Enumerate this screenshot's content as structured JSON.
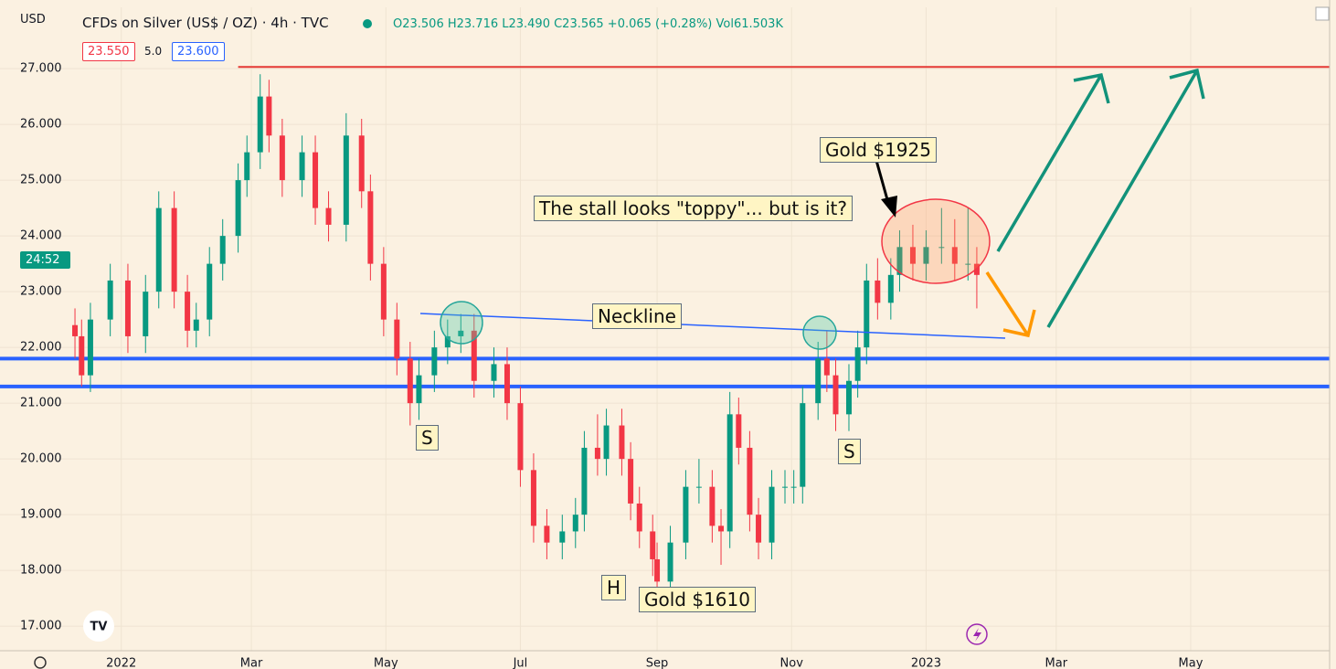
{
  "chart_data": {
    "type": "candlestick",
    "currency": "USD",
    "title": "CFDs on Silver (US$ / OZ) · 4h · TVC",
    "ohlc_text": "O23.506 H23.716 L23.490 C23.565 +0.065 (+0.28%) Vol61.503K",
    "bid": "23.550",
    "spread": "5.0",
    "ask": "23.600",
    "countdown": "24:52",
    "up_color": "#089981",
    "down_color": "#f23645",
    "xlim": [
      -55,
      548
    ],
    "xticks": [
      {
        "value": 0,
        "label": "2022"
      },
      {
        "value": 59,
        "label": "Mar"
      },
      {
        "value": 120,
        "label": "May"
      },
      {
        "value": 181,
        "label": "Jul"
      },
      {
        "value": 243,
        "label": "Sep"
      },
      {
        "value": 304,
        "label": "Nov"
      },
      {
        "value": 365,
        "label": "2023"
      },
      {
        "value": 424,
        "label": "Mar"
      },
      {
        "value": 485,
        "label": "May"
      }
    ],
    "ylim": [
      16.56,
      28.1
    ],
    "yticks": [
      {
        "value": 17,
        "label": "17.000"
      },
      {
        "value": 18,
        "label": "18.000"
      },
      {
        "value": 19,
        "label": "19.000"
      },
      {
        "value": 20,
        "label": "20.000"
      },
      {
        "value": 21,
        "label": "21.000"
      },
      {
        "value": 22,
        "label": "22.000"
      },
      {
        "value": 23,
        "label": "23.000"
      },
      {
        "value": 24,
        "label": "24.000"
      },
      {
        "value": 25,
        "label": "25.000"
      },
      {
        "value": 26,
        "label": "26.000"
      },
      {
        "value": 27,
        "label": "27.000"
      }
    ],
    "grid": true,
    "x": [
      -21,
      -18,
      -14,
      -5,
      3,
      11,
      17,
      24,
      30,
      34,
      40,
      46,
      53,
      57,
      63,
      67,
      73,
      82,
      88,
      94,
      102,
      109,
      113,
      119,
      125,
      131,
      135,
      142,
      148,
      154,
      160,
      169,
      175,
      181,
      187,
      193,
      200,
      206,
      210,
      216,
      220,
      227,
      231,
      235,
      241,
      243,
      249,
      256,
      262,
      268,
      272,
      276,
      280,
      285,
      289,
      295,
      301,
      305,
      309,
      316,
      320,
      324,
      330,
      334,
      338,
      343,
      349,
      353,
      359,
      365,
      372,
      378,
      384,
      388
    ],
    "open": [
      22.4,
      22.2,
      21.5,
      22.5,
      23.2,
      22.2,
      23,
      24.5,
      23,
      22.3,
      22.5,
      23.5,
      24,
      25,
      25.5,
      26.5,
      25.8,
      25,
      25.5,
      24.5,
      24.2,
      25.8,
      24.8,
      23.5,
      22.5,
      21.8,
      21,
      21.5,
      22,
      22.2,
      22.3,
      21.4,
      21.7,
      21,
      19.8,
      18.8,
      18.5,
      18.7,
      19,
      20.2,
      20,
      20.6,
      20,
      19.2,
      18.7,
      18.2,
      17.8,
      18.5,
      19.5,
      19.5,
      18.8,
      18.7,
      20.8,
      20.2,
      19,
      18.5,
      19.5,
      19.5,
      19.5,
      21,
      21.8,
      21.5,
      20.8,
      21.4,
      22,
      23.2,
      22.8,
      23.3,
      23.8,
      23.5,
      23.8,
      23.8,
      23.5,
      23.5
    ],
    "high": [
      22.7,
      22.5,
      22.8,
      23.5,
      23.5,
      23.3,
      24.8,
      24.8,
      23.3,
      22.8,
      23.8,
      24.3,
      25.3,
      25.8,
      26.9,
      26.8,
      26.1,
      25.8,
      25.8,
      24.8,
      26.2,
      26.1,
      25.1,
      23.8,
      22.8,
      22.1,
      21.8,
      22.3,
      22.5,
      22.6,
      22.6,
      22,
      22,
      21.3,
      20.1,
      19.1,
      19,
      19.3,
      20.5,
      20.8,
      20.9,
      20.9,
      20.3,
      19.5,
      19,
      18.5,
      18.8,
      19.8,
      20,
      19.8,
      19.1,
      21.2,
      21.1,
      20.5,
      19.3,
      19.8,
      19.8,
      19.8,
      21.3,
      22.1,
      22.3,
      21.8,
      21.7,
      22.3,
      23.5,
      23.6,
      23.6,
      24.1,
      24.2,
      24.1,
      24.5,
      24.3,
      24.5,
      23.8
    ],
    "low": [
      21.8,
      21.3,
      21.2,
      22.2,
      21.9,
      21.9,
      22.7,
      22.7,
      22,
      22,
      22.2,
      23.2,
      23.7,
      24.7,
      25.2,
      25.5,
      24.7,
      24.7,
      24.2,
      23.9,
      23.9,
      24.5,
      23.2,
      22.2,
      21.5,
      20.6,
      20.7,
      21.2,
      21.7,
      21.9,
      21.1,
      21.1,
      20.7,
      19.5,
      18.5,
      18.2,
      18.2,
      18.4,
      18.7,
      19.7,
      19.7,
      19.7,
      18.9,
      18.4,
      17.9,
      17.6,
      17.5,
      18.2,
      19.2,
      18.5,
      18.1,
      18.4,
      19.9,
      18.7,
      18.2,
      18.2,
      19.2,
      19.2,
      19.2,
      20.7,
      21.2,
      20.5,
      20.5,
      21.1,
      21.7,
      22.5,
      22.5,
      23,
      23.2,
      23.2,
      23.5,
      23.2,
      23.2,
      22.7
    ],
    "close": [
      22.2,
      21.5,
      22.5,
      23.2,
      22.2,
      23,
      24.5,
      23,
      22.3,
      22.5,
      23.5,
      24,
      25,
      25.5,
      26.5,
      25.8,
      25,
      25.5,
      24.5,
      24.2,
      25.8,
      24.8,
      23.5,
      22.5,
      21.8,
      21,
      21.5,
      22,
      22.2,
      22.3,
      21.4,
      21.7,
      21,
      19.8,
      18.8,
      18.5,
      18.7,
      19,
      20.2,
      20,
      20.6,
      20,
      19.2,
      18.7,
      18.2,
      17.8,
      18.5,
      19.5,
      19.5,
      18.8,
      18.7,
      20.8,
      20.2,
      19,
      18.5,
      19.5,
      19.5,
      19.5,
      21,
      21.8,
      21.5,
      20.8,
      21.4,
      22,
      23.2,
      22.8,
      23.3,
      23.8,
      23.5,
      23.8,
      23.8,
      23.5,
      23.5,
      23.3
    ],
    "levels": [
      {
        "value": 27.03,
        "start": 53,
        "color": "#e53935"
      },
      {
        "value": 21.8,
        "start": -55,
        "color": "#2962ff"
      },
      {
        "value": 21.3,
        "start": -55,
        "color": "#2962ff"
      }
    ],
    "annotations": {
      "gold_high": "Gold $1925",
      "stall": "The stall looks \"toppy\"... but is it?",
      "neckline": "Neckline",
      "left_shoulder": "S",
      "right_shoulder": "S",
      "head": "H",
      "gold_low": "Gold $1610"
    }
  }
}
